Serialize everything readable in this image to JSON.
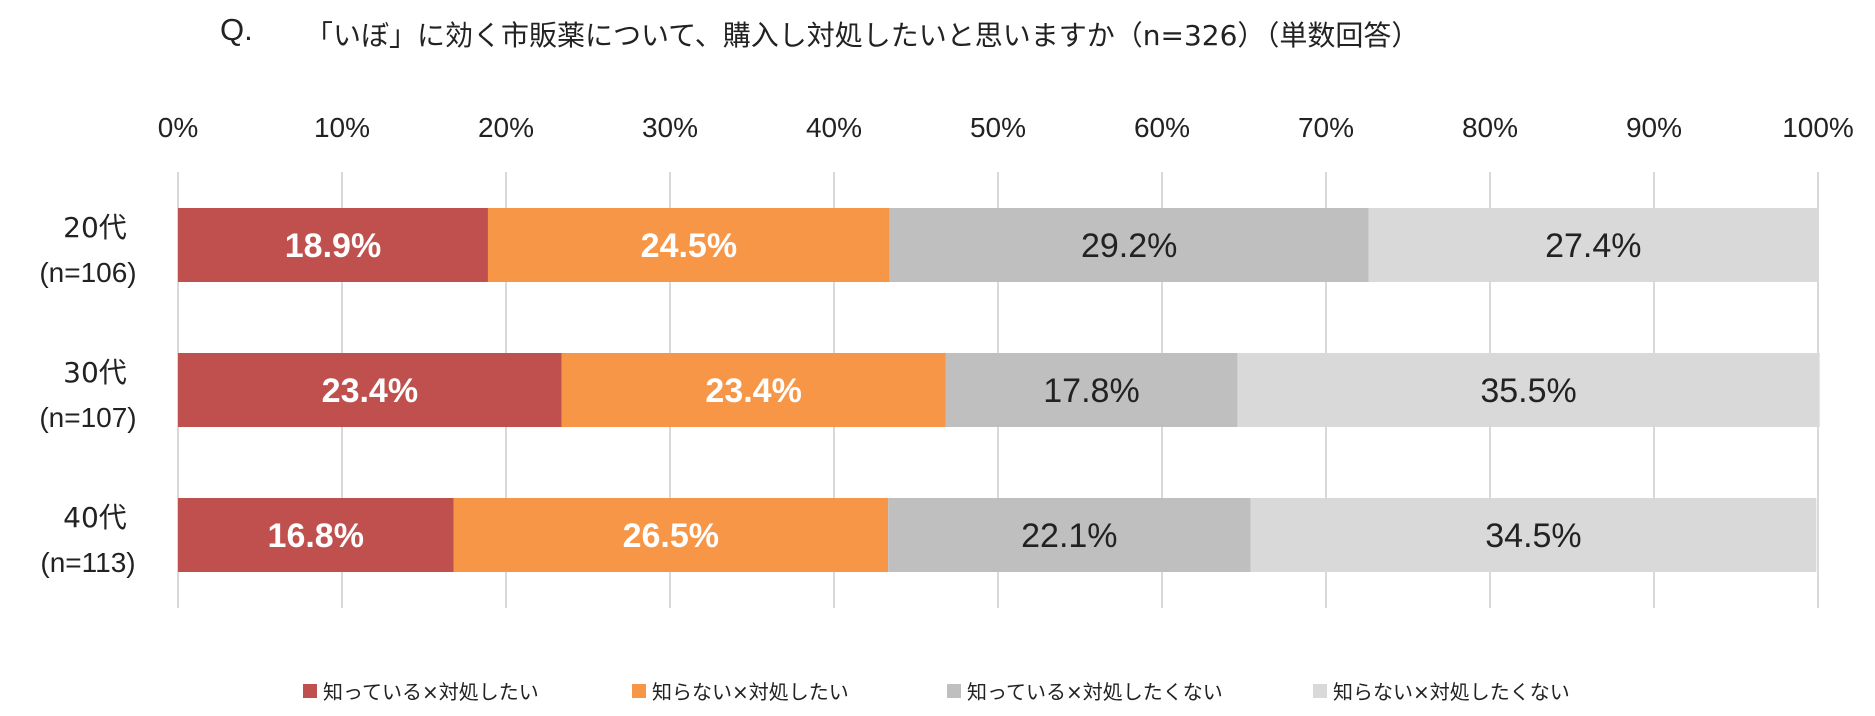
{
  "chart_data": {
    "type": "bar",
    "orientation": "horizontal",
    "stacked": true,
    "title": "「いぼ」に効く市販薬について、購入し対処したいと思いますか（n=326）（単数回答）",
    "title_prefix": "Q.",
    "categories": [
      "20代",
      "30代",
      "40代"
    ],
    "category_sublabels": [
      "(n=106)",
      "(n=107)",
      "(n=113)"
    ],
    "xlim": [
      0,
      100
    ],
    "xticks": [
      "0%",
      "10%",
      "20%",
      "30%",
      "40%",
      "50%",
      "60%",
      "70%",
      "80%",
      "90%",
      "100%"
    ],
    "grid": true,
    "legend_position": "bottom",
    "series": [
      {
        "name": "知っている×対処したい",
        "color": "#c0504d",
        "label_color": "#ffffff",
        "values": [
          18.9,
          23.4,
          16.8
        ]
      },
      {
        "name": "知らない×対処したい",
        "color": "#f79646",
        "label_color": "#ffffff",
        "values": [
          24.5,
          23.4,
          26.5
        ]
      },
      {
        "name": "知っている×対処したくない",
        "color": "#bfbfbf",
        "label_color": "#222222",
        "values": [
          29.2,
          17.8,
          22.1
        ]
      },
      {
        "name": "知らない×対処したくない",
        "color": "#d9d9d9",
        "label_color": "#222222",
        "values": [
          27.4,
          35.5,
          34.5
        ]
      }
    ]
  }
}
